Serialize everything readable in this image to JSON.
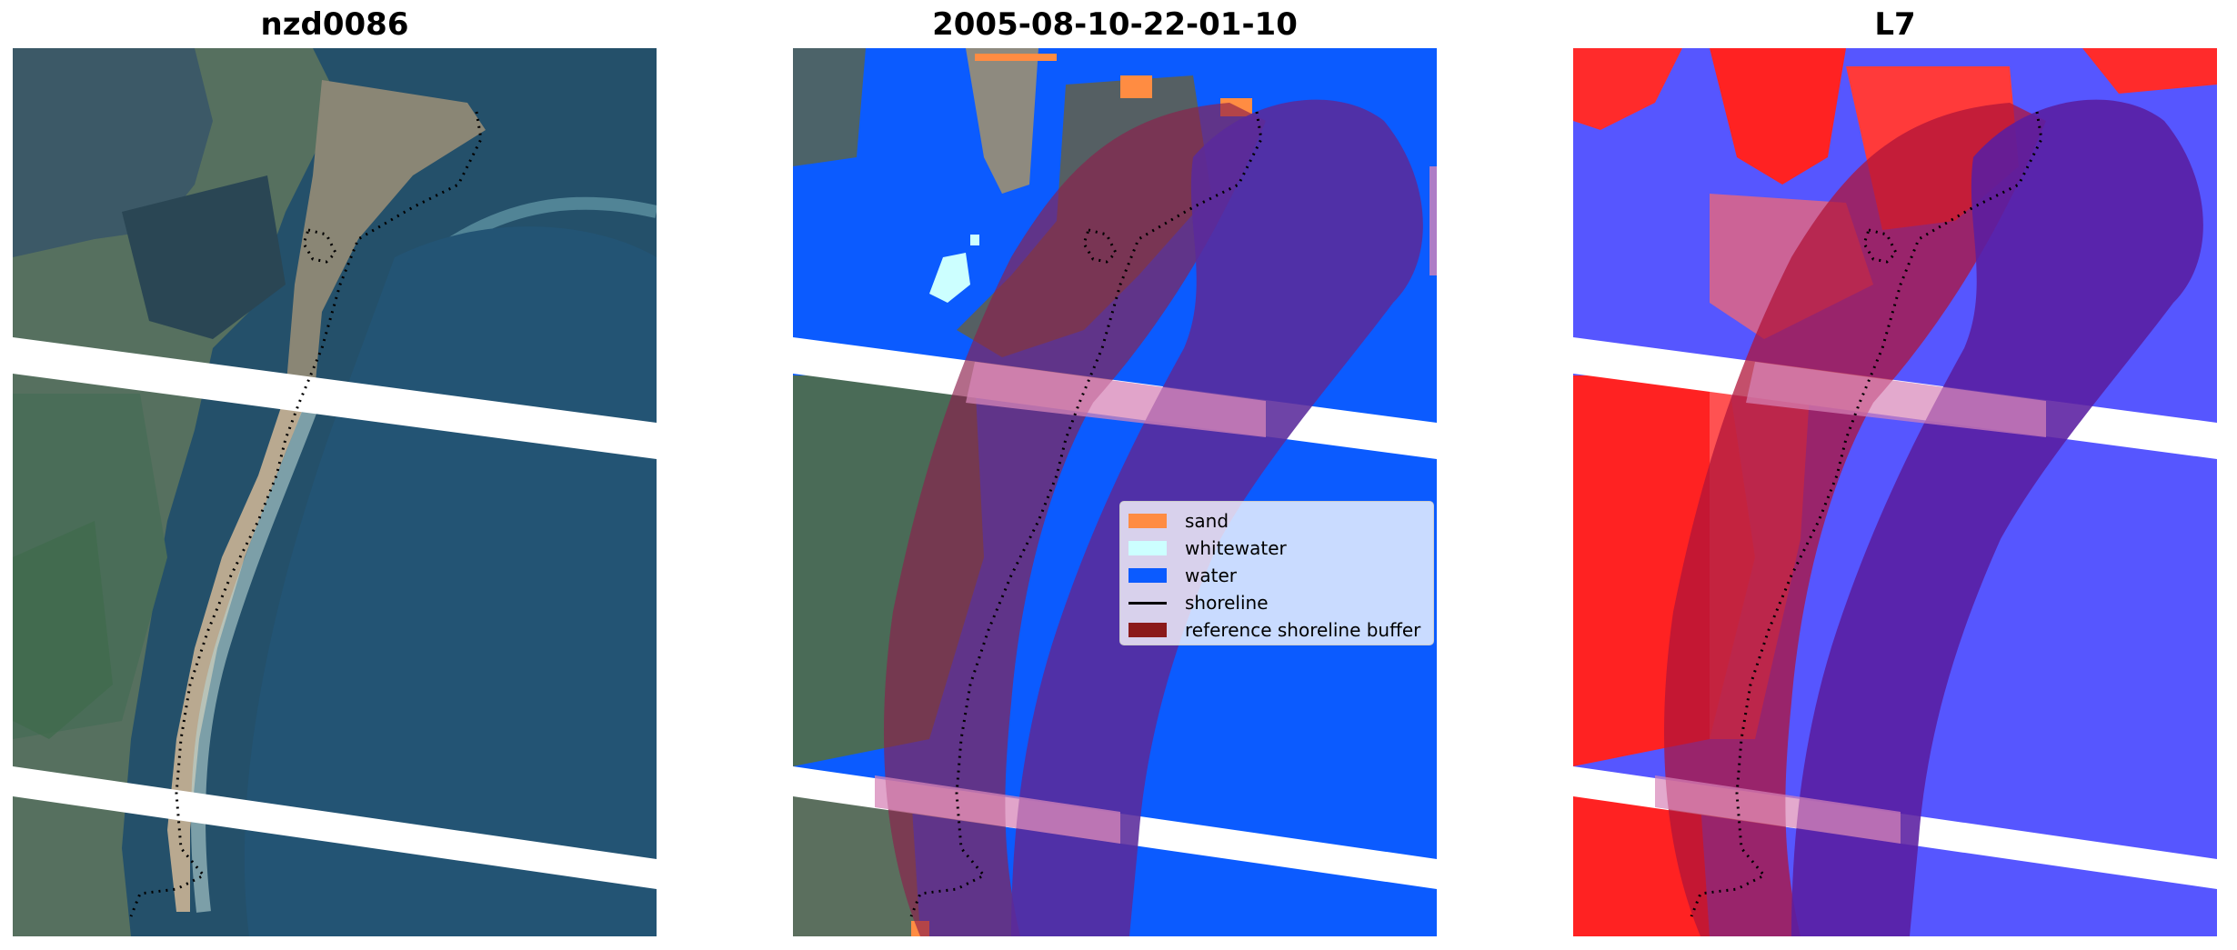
{
  "panels": [
    {
      "title": "nzd0086"
    },
    {
      "title": "2005-08-10-22-01-10"
    },
    {
      "title": "L7"
    }
  ],
  "legend": {
    "items": [
      {
        "label": "sand",
        "color": "#ff8c42",
        "kind": "patch"
      },
      {
        "label": "whitewater",
        "color": "#ccffff",
        "kind": "patch"
      },
      {
        "label": "water",
        "color": "#0b5bff",
        "kind": "patch"
      },
      {
        "label": "shoreline",
        "color": "#000000",
        "kind": "line"
      },
      {
        "label": "reference shoreline buffer",
        "color": "#8b1a1a",
        "kind": "patch"
      }
    ]
  },
  "colors": {
    "water_class": "#0b5bff",
    "sand_class": "#ff8c42",
    "whitewater_class": "#ccffff",
    "buffer": "#a0191e",
    "index_positive": "#ff2222",
    "index_negative": "#3b3bff",
    "gap_stripes": "#ffffff"
  }
}
